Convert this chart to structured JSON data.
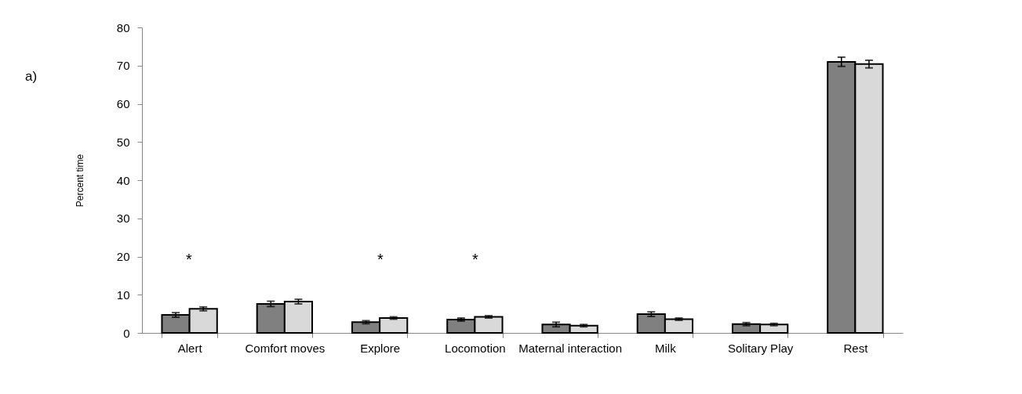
{
  "chart_data": {
    "type": "bar",
    "ylabel": "Percent time",
    "categories": [
      "Alert",
      "Comfort moves",
      "Explore",
      "Locomotion",
      "Maternal interaction",
      "Milk",
      "Solitary Play",
      "Rest"
    ],
    "series": [
      {
        "color": "#808080",
        "values": [
          4.7,
          7.6,
          2.8,
          3.5,
          2.2,
          4.9,
          2.3,
          71.0
        ],
        "errors": [
          0.6,
          0.7,
          0.4,
          0.4,
          0.6,
          0.6,
          0.4,
          1.2
        ]
      },
      {
        "color": "#d9d9d9",
        "values": [
          6.3,
          8.2,
          3.9,
          4.2,
          1.9,
          3.6,
          2.2,
          70.4
        ],
        "errors": [
          0.5,
          0.6,
          0.3,
          0.3,
          0.3,
          0.3,
          0.3,
          1.0
        ]
      }
    ],
    "ylim": [
      0,
      80
    ],
    "yticks": [
      0,
      10,
      20,
      30,
      40,
      50,
      60,
      70,
      80
    ],
    "grid": false,
    "legend": false,
    "annotations": [
      "a)",
      "*",
      "*",
      "*"
    ]
  }
}
